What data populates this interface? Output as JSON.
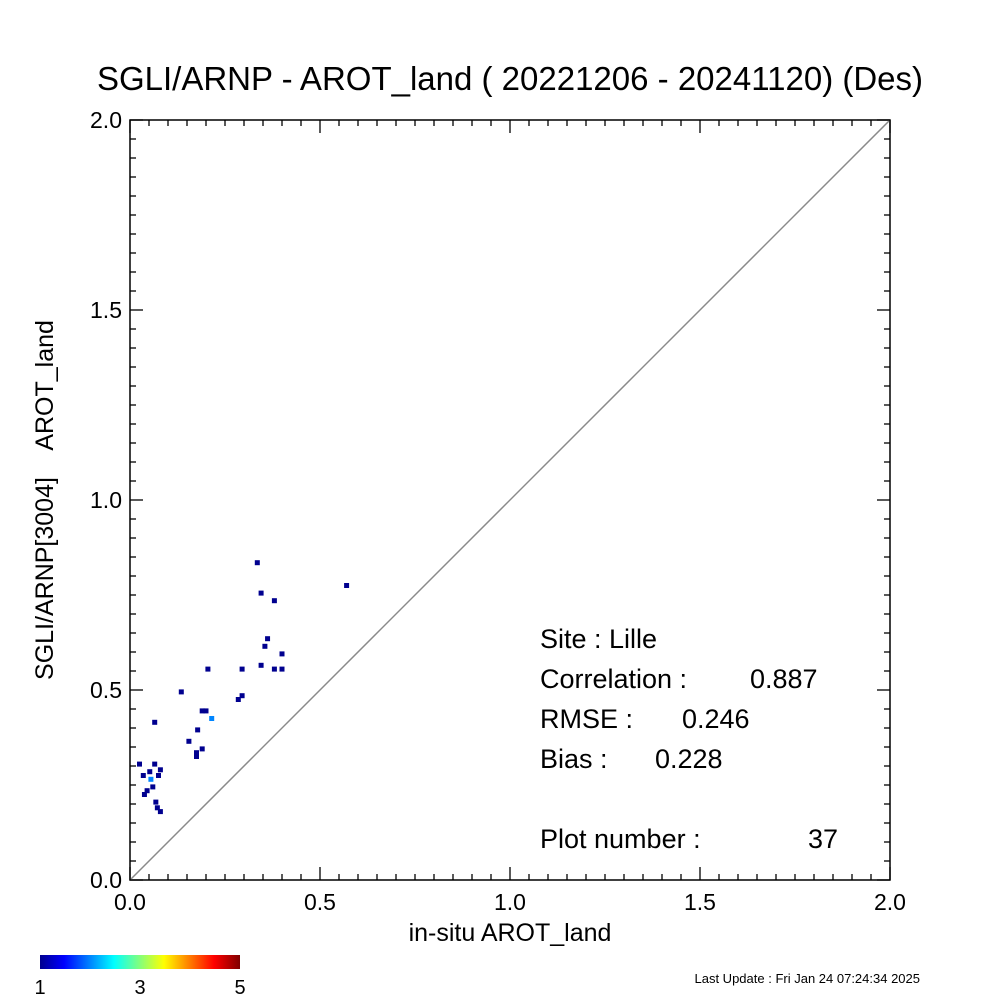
{
  "chart_data": {
    "type": "scatter",
    "title": "SGLI/ARNP - AROT_land ( 20221206 - 20241120) (Des)",
    "xlabel": "in-situ AROT_land",
    "ylabel": "SGLI/ARNP[3004]    AROT_land",
    "xlim": [
      0.0,
      2.0
    ],
    "ylim": [
      0.0,
      2.0
    ],
    "xticks": [
      "0.0",
      "0.5",
      "1.0",
      "1.5",
      "2.0"
    ],
    "yticks": [
      "0.0",
      "0.5",
      "1.0",
      "1.5",
      "2.0"
    ],
    "one_to_one_line": true,
    "grid": false,
    "point_color_scale": "count (jet colormap)",
    "points": [
      {
        "x": 0.025,
        "y": 0.305,
        "c": 1
      },
      {
        "x": 0.035,
        "y": 0.275,
        "c": 1
      },
      {
        "x": 0.038,
        "y": 0.225,
        "c": 1
      },
      {
        "x": 0.045,
        "y": 0.235,
        "c": 1
      },
      {
        "x": 0.052,
        "y": 0.285,
        "c": 1
      },
      {
        "x": 0.055,
        "y": 0.265,
        "c": 2
      },
      {
        "x": 0.06,
        "y": 0.245,
        "c": 1
      },
      {
        "x": 0.065,
        "y": 0.305,
        "c": 1
      },
      {
        "x": 0.065,
        "y": 0.415,
        "c": 1
      },
      {
        "x": 0.068,
        "y": 0.205,
        "c": 1
      },
      {
        "x": 0.072,
        "y": 0.19,
        "c": 1
      },
      {
        "x": 0.075,
        "y": 0.275,
        "c": 1
      },
      {
        "x": 0.08,
        "y": 0.18,
        "c": 1
      },
      {
        "x": 0.08,
        "y": 0.29,
        "c": 1
      },
      {
        "x": 0.135,
        "y": 0.495,
        "c": 1
      },
      {
        "x": 0.155,
        "y": 0.365,
        "c": 1
      },
      {
        "x": 0.175,
        "y": 0.325,
        "c": 1
      },
      {
        "x": 0.175,
        "y": 0.335,
        "c": 1
      },
      {
        "x": 0.178,
        "y": 0.395,
        "c": 1
      },
      {
        "x": 0.19,
        "y": 0.345,
        "c": 1
      },
      {
        "x": 0.19,
        "y": 0.445,
        "c": 1
      },
      {
        "x": 0.2,
        "y": 0.445,
        "c": 1
      },
      {
        "x": 0.205,
        "y": 0.555,
        "c": 1
      },
      {
        "x": 0.215,
        "y": 0.425,
        "c": 2
      },
      {
        "x": 0.285,
        "y": 0.475,
        "c": 1
      },
      {
        "x": 0.295,
        "y": 0.485,
        "c": 1
      },
      {
        "x": 0.295,
        "y": 0.555,
        "c": 1
      },
      {
        "x": 0.335,
        "y": 0.835,
        "c": 1
      },
      {
        "x": 0.345,
        "y": 0.755,
        "c": 1
      },
      {
        "x": 0.345,
        "y": 0.565,
        "c": 1
      },
      {
        "x": 0.355,
        "y": 0.615,
        "c": 1
      },
      {
        "x": 0.362,
        "y": 0.635,
        "c": 1
      },
      {
        "x": 0.38,
        "y": 0.735,
        "c": 1
      },
      {
        "x": 0.38,
        "y": 0.555,
        "c": 1
      },
      {
        "x": 0.4,
        "y": 0.595,
        "c": 1
      },
      {
        "x": 0.4,
        "y": 0.555,
        "c": 1
      },
      {
        "x": 0.57,
        "y": 0.775,
        "c": 1
      }
    ],
    "colorbar": {
      "min": 1,
      "max": 5,
      "tick_labels": [
        "1",
        "3",
        "5"
      ]
    }
  },
  "stats": {
    "site_label": "Site : Lille",
    "correlation_label": "Correlation :",
    "correlation_value": "0.887",
    "rmse_label": "RMSE :",
    "rmse_value": "0.246",
    "bias_label": "Bias :",
    "bias_value": "0.228",
    "plot_number_label": "Plot number :",
    "plot_number_value": "37"
  },
  "footer": {
    "last_update": "Last Update : Fri Jan 24 07:24:34 2025"
  },
  "colors": {
    "one_to_one_line": "#8a8a8a",
    "axes": "#000000",
    "jet_stops": [
      "#00008f",
      "#0000ff",
      "#00ffff",
      "#ffff00",
      "#ff0000",
      "#800000"
    ]
  }
}
